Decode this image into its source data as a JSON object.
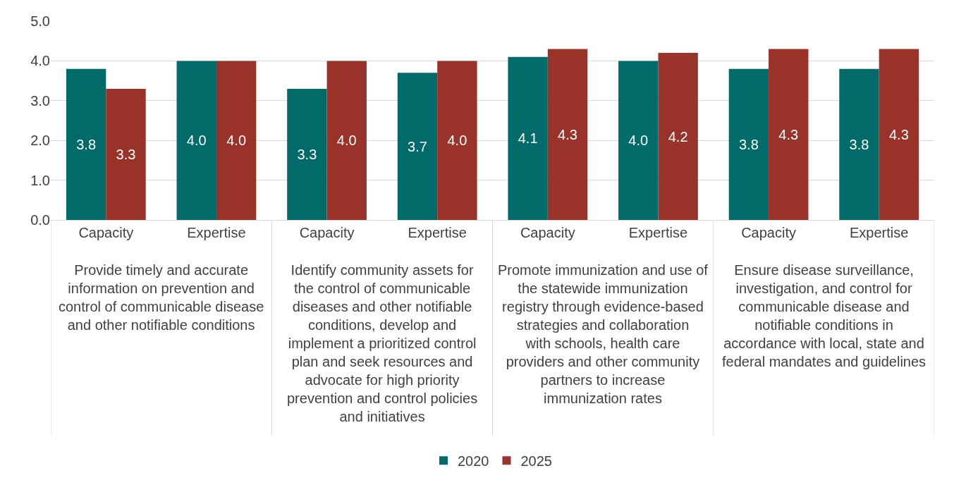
{
  "chart_data": {
    "type": "bar",
    "categories": [
      "Capacity",
      "Expertise",
      "Capacity",
      "Expertise",
      "Capacity",
      "Expertise",
      "Capacity",
      "Expertise"
    ],
    "series": [
      {
        "name": "2020",
        "color": "#006b68",
        "values": [
          3.8,
          4.0,
          3.3,
          3.7,
          4.1,
          4.0,
          3.8,
          3.8
        ],
        "value_labels": [
          "3.8",
          "4.0",
          "3.3",
          "3.7",
          "4.1",
          "4.0",
          "3.8",
          "3.8"
        ]
      },
      {
        "name": "2025",
        "color": "#993329",
        "values": [
          3.3,
          4.0,
          4.0,
          4.0,
          4.3,
          4.2,
          4.3,
          4.3
        ],
        "value_labels": [
          "3.3",
          "4.0",
          "4.0",
          "4.0",
          "4.3",
          "4.2",
          "4.3",
          "4.3"
        ]
      }
    ],
    "annotations": [
      "Provide timely and accurate information on prevention and control of communicable disease and other notifiable conditions",
      "Identify community assets for the control of communicable diseases and other notifiable conditions, develop and implement a prioritized control plan and seek resources and advocate for high priority prevention and control policies and initiatives",
      "Promote immunization and use of the statewide immunization registry through evidence-based strategies and collaboration with schools, health care providers and other community partners to increase immunization rates",
      "Ensure disease surveillance, investigation, and control for communicable disease and notifiable conditions in accordance with local, state and federal mandates and guidelines"
    ],
    "ylim": [
      0,
      5
    ],
    "yticks": [
      {
        "value": 0,
        "label": "0.0"
      },
      {
        "value": 1,
        "label": "1.0"
      },
      {
        "value": 2,
        "label": "2.0"
      },
      {
        "value": 3,
        "label": "3.0"
      },
      {
        "value": 4,
        "label": "4.0"
      },
      {
        "value": 5,
        "label": "5.0"
      }
    ],
    "grid": "y",
    "legend": "bottom"
  }
}
